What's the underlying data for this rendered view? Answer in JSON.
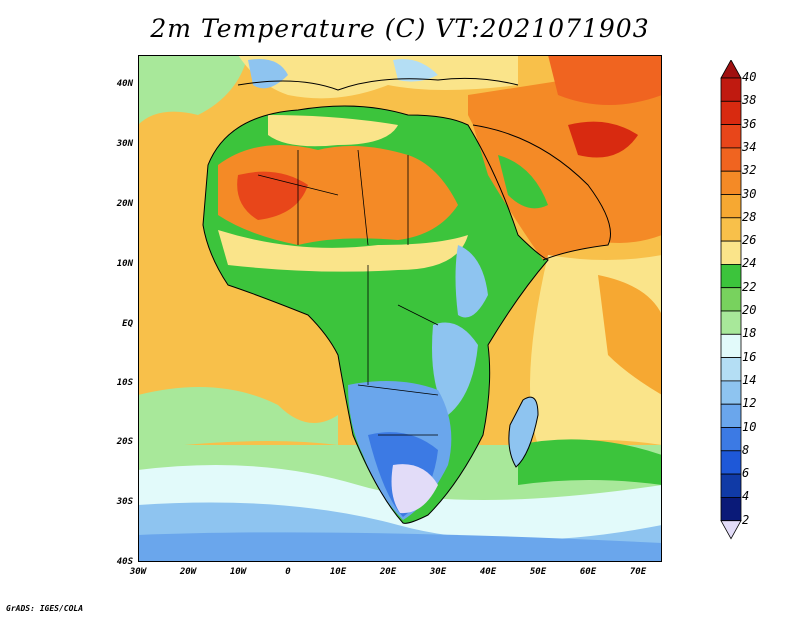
{
  "title": "2m Temperature (C) VT:2021071903",
  "credit": "GrADS: IGES/COLA",
  "map": {
    "region": "Africa",
    "lon_range": [
      -30,
      75
    ],
    "lat_range": [
      -40,
      45
    ],
    "lat_ticks": [
      "40N",
      "30N",
      "20N",
      "10N",
      "EQ",
      "10S",
      "20S",
      "30S",
      "40S"
    ],
    "lon_ticks": [
      "30W",
      "20W",
      "10W",
      "0",
      "10E",
      "20E",
      "30E",
      "40E",
      "50E",
      "60E",
      "70E"
    ]
  },
  "colorbar": {
    "labels": [
      "40",
      "38",
      "36",
      "34",
      "32",
      "30",
      "28",
      "26",
      "24",
      "22",
      "20",
      "18",
      "16",
      "14",
      "12",
      "10",
      "8",
      "6",
      "4",
      "2"
    ],
    "colors": [
      "#a01010",
      "#c01a10",
      "#d82a10",
      "#e8461a",
      "#f06420",
      "#f48a26",
      "#f6a832",
      "#f8c04a",
      "#fae48a",
      "#3cc43c",
      "#78d25e",
      "#a8e89a",
      "#e2fafa",
      "#b4def4",
      "#8ec4f0",
      "#6aa6ec",
      "#3c7ae4",
      "#1e58d8",
      "#103aa6",
      "#0a1a78",
      "#e2dcf8"
    ]
  }
}
